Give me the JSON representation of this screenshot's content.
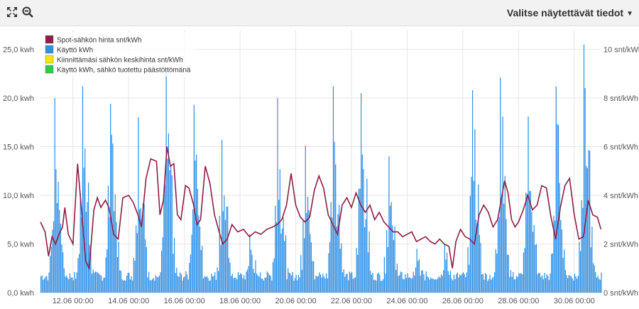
{
  "toolbar": {
    "fullscreen_icon": "expand-icon",
    "zoom_icon": "zoom-out-icon",
    "select_label": "Valitse näytettävät tiedot"
  },
  "colors": {
    "consumption": "#2f8fe3",
    "spot": "#8e1e45",
    "avg_price": "#f5e612",
    "green": "#2ecc40",
    "grid": "#e6e6e6",
    "axis_text": "#555555"
  },
  "chart_data": {
    "type": "bar+line",
    "title": "",
    "xlabel": "",
    "ylabel_left": "",
    "ylabel_right": "",
    "legend_position": "top-left",
    "grid": true,
    "left_axis": {
      "min": 0,
      "max": 27,
      "ticks": [
        0,
        5,
        10,
        15,
        20,
        25
      ],
      "tick_labels": [
        "0,0 kwh",
        "5,0 kwh",
        "10,0 kwh",
        "15,0 kwh",
        "20,0 kwh",
        "25,0 kwh"
      ]
    },
    "right_axis": {
      "min": 0,
      "max": 10.8,
      "ticks": [
        0,
        2,
        4,
        6,
        8,
        10
      ],
      "tick_labels": [
        "0 snt/kWh",
        "2 snt/kWh",
        "4 snt/kWh",
        "6 snt/kWh",
        "8 snt/kWh",
        "10 snt/kWh"
      ]
    },
    "x_axis": {
      "start": "10.06 20:00",
      "end": "01.07 00:00",
      "ticks": [
        "2023-06-12",
        "2023-06-14",
        "2023-06-16",
        "2023-06-18",
        "2023-06-20",
        "2023-06-22",
        "2023-06-24",
        "2023-06-26",
        "2023-06-28",
        "2023-06-30"
      ],
      "tick_labels": [
        "12.06 00:00",
        "14.06 00:00",
        "16.06 00:00",
        "18.06 00:00",
        "20.06 00:00",
        "22.06 00:00",
        "24.06 00:00",
        "26.06 00:00",
        "28.06 00:00",
        "30.06 00:00"
      ]
    },
    "legend": [
      {
        "label": "Spot-sähkön hinta snt/kWh",
        "color": "#8e1e45"
      },
      {
        "label": "Käyttö kWh",
        "color": "#2f8fe3"
      },
      {
        "label": "Kiinnittämäsi sähkön keskihinta snt/kWh",
        "color": "#f5e612"
      },
      {
        "label": "Käyttö kWh, sähkö tuotettu päästöttömänä",
        "color": "#2ecc40"
      }
    ],
    "series": [
      {
        "name": "Käyttö kWh",
        "axis": "left",
        "type": "bar",
        "daily_peaks_kwh": [
          {
            "date": "2023-06-11",
            "peak": 20.0
          },
          {
            "date": "2023-06-12",
            "peak": 21.2
          },
          {
            "date": "2023-06-13",
            "peak": 19.4
          },
          {
            "date": "2023-06-14",
            "peak": 18.0
          },
          {
            "date": "2023-06-15",
            "peak": 22.7
          },
          {
            "date": "2023-06-16",
            "peak": 19.3
          },
          {
            "date": "2023-06-17",
            "peak": 15.7
          },
          {
            "date": "2023-06-18",
            "peak": 6.0
          },
          {
            "date": "2023-06-19",
            "peak": 20.0
          },
          {
            "date": "2023-06-20",
            "peak": 15.1
          },
          {
            "date": "2023-06-21",
            "peak": 21.2
          },
          {
            "date": "2023-06-22",
            "peak": 20.5
          },
          {
            "date": "2023-06-23",
            "peak": 14.0
          },
          {
            "date": "2023-06-24",
            "peak": 4.5
          },
          {
            "date": "2023-06-25",
            "peak": 5.0
          },
          {
            "date": "2023-06-26",
            "peak": 20.8
          },
          {
            "date": "2023-06-27",
            "peak": 22.1
          },
          {
            "date": "2023-06-28",
            "peak": 18.1
          },
          {
            "date": "2023-06-29",
            "peak": 21.2
          },
          {
            "date": "2023-06-30",
            "peak": 25.5
          }
        ],
        "baseline_kwh": 1.2
      },
      {
        "name": "Spot-sähkön hinta snt/kWh",
        "axis": "right",
        "type": "line",
        "points": [
          [
            "2023-06-10 20:00",
            2.9
          ],
          [
            "2023-06-11 00:00",
            2.5
          ],
          [
            "2023-06-11 03:00",
            1.5
          ],
          [
            "2023-06-11 06:00",
            2.3
          ],
          [
            "2023-06-11 09:00",
            2.0
          ],
          [
            "2023-06-11 12:00",
            2.4
          ],
          [
            "2023-06-11 15:00",
            2.7
          ],
          [
            "2023-06-11 17:00",
            3.5
          ],
          [
            "2023-06-11 20:00",
            2.4
          ],
          [
            "2023-06-12 00:00",
            2.0
          ],
          [
            "2023-06-12 04:00",
            5.3
          ],
          [
            "2023-06-12 07:00",
            3.6
          ],
          [
            "2023-06-12 11:00",
            1.3
          ],
          [
            "2023-06-12 14:00",
            1.0
          ],
          [
            "2023-06-12 18:00",
            3.4
          ],
          [
            "2023-06-12 21:00",
            3.9
          ],
          [
            "2023-06-13 00:00",
            3.5
          ],
          [
            "2023-06-13 04:00",
            3.8
          ],
          [
            "2023-06-13 07:00",
            3.5
          ],
          [
            "2023-06-13 11:00",
            2.4
          ],
          [
            "2023-06-13 15:00",
            2.2
          ],
          [
            "2023-06-13 19:00",
            3.9
          ],
          [
            "2023-06-14 00:00",
            4.0
          ],
          [
            "2023-06-14 04:00",
            3.7
          ],
          [
            "2023-06-14 08:00",
            3.2
          ],
          [
            "2023-06-14 11:00",
            2.7
          ],
          [
            "2023-06-14 15:00",
            4.7
          ],
          [
            "2023-06-14 19:00",
            5.5
          ],
          [
            "2023-06-15 00:00",
            5.4
          ],
          [
            "2023-06-15 03:00",
            3.2
          ],
          [
            "2023-06-15 06:00",
            3.8
          ],
          [
            "2023-06-15 09:00",
            6.0
          ],
          [
            "2023-06-15 12:00",
            5.2
          ],
          [
            "2023-06-15 15:00",
            5.3
          ],
          [
            "2023-06-15 18:00",
            3.2
          ],
          [
            "2023-06-15 21:00",
            3.0
          ],
          [
            "2023-06-16 01:00",
            4.4
          ],
          [
            "2023-06-16 04:00",
            4.3
          ],
          [
            "2023-06-16 08:00",
            3.6
          ],
          [
            "2023-06-16 11:00",
            2.8
          ],
          [
            "2023-06-16 14:00",
            3.0
          ],
          [
            "2023-06-16 18:00",
            5.2
          ],
          [
            "2023-06-16 22:00",
            4.5
          ],
          [
            "2023-06-17 02:00",
            3.2
          ],
          [
            "2023-06-17 06:00",
            2.5
          ],
          [
            "2023-06-17 09:00",
            2.0
          ],
          [
            "2023-06-17 13:00",
            2.2
          ],
          [
            "2023-06-17 17:00",
            2.8
          ],
          [
            "2023-06-17 22:00",
            2.5
          ],
          [
            "2023-06-18 03:00",
            2.6
          ],
          [
            "2023-06-18 08:00",
            2.3
          ],
          [
            "2023-06-18 13:00",
            2.5
          ],
          [
            "2023-06-18 18:00",
            2.4
          ],
          [
            "2023-06-18 23:00",
            2.6
          ],
          [
            "2023-06-19 04:00",
            2.7
          ],
          [
            "2023-06-19 08:00",
            2.8
          ],
          [
            "2023-06-19 12:00",
            3.0
          ],
          [
            "2023-06-19 16:00",
            3.6
          ],
          [
            "2023-06-19 20:00",
            4.9
          ],
          [
            "2023-06-20 00:00",
            3.6
          ],
          [
            "2023-06-20 04:00",
            3.1
          ],
          [
            "2023-06-20 08:00",
            2.9
          ],
          [
            "2023-06-20 12:00",
            3.1
          ],
          [
            "2023-06-20 16:00",
            4.2
          ],
          [
            "2023-06-20 20:00",
            4.8
          ],
          [
            "2023-06-21 00:00",
            4.3
          ],
          [
            "2023-06-21 04:00",
            3.2
          ],
          [
            "2023-06-21 08:00",
            2.8
          ],
          [
            "2023-06-21 12:00",
            2.4
          ],
          [
            "2023-06-21 16:00",
            3.6
          ],
          [
            "2023-06-21 20:00",
            3.9
          ],
          [
            "2023-06-22 00:00",
            3.5
          ],
          [
            "2023-06-22 04:00",
            4.1
          ],
          [
            "2023-06-22 08:00",
            3.6
          ],
          [
            "2023-06-22 12:00",
            3.3
          ],
          [
            "2023-06-22 16:00",
            3.6
          ],
          [
            "2023-06-22 20:00",
            3.0
          ],
          [
            "2023-06-23 00:00",
            3.3
          ],
          [
            "2023-06-23 04:00",
            2.9
          ],
          [
            "2023-06-23 08:00",
            2.7
          ],
          [
            "2023-06-23 12:00",
            2.5
          ],
          [
            "2023-06-23 16:00",
            2.5
          ],
          [
            "2023-06-23 20:00",
            2.3
          ],
          [
            "2023-06-24 00:00",
            2.4
          ],
          [
            "2023-06-24 04:00",
            2.5
          ],
          [
            "2023-06-24 08:00",
            2.1
          ],
          [
            "2023-06-24 12:00",
            2.2
          ],
          [
            "2023-06-24 16:00",
            2.3
          ],
          [
            "2023-06-24 20:00",
            2.1
          ],
          [
            "2023-06-25 00:00",
            2.0
          ],
          [
            "2023-06-25 04:00",
            2.2
          ],
          [
            "2023-06-25 08:00",
            2.0
          ],
          [
            "2023-06-25 12:00",
            1.9
          ],
          [
            "2023-06-25 15:00",
            1.0
          ],
          [
            "2023-06-25 18:00",
            2.1
          ],
          [
            "2023-06-25 22:00",
            2.6
          ],
          [
            "2023-06-26 02:00",
            2.3
          ],
          [
            "2023-06-26 06:00",
            2.2
          ],
          [
            "2023-06-26 10:00",
            2.0
          ],
          [
            "2023-06-26 14:00",
            3.2
          ],
          [
            "2023-06-26 18:00",
            3.6
          ],
          [
            "2023-06-26 22:00",
            3.3
          ],
          [
            "2023-06-27 02:00",
            2.7
          ],
          [
            "2023-06-27 06:00",
            3.0
          ],
          [
            "2023-06-27 09:00",
            3.8
          ],
          [
            "2023-06-27 12:00",
            4.6
          ],
          [
            "2023-06-27 15:00",
            4.1
          ],
          [
            "2023-06-27 18:00",
            3.0
          ],
          [
            "2023-06-27 21:00",
            2.7
          ],
          [
            "2023-06-28 00:00",
            2.9
          ],
          [
            "2023-06-28 04:00",
            3.4
          ],
          [
            "2023-06-28 08:00",
            4.0
          ],
          [
            "2023-06-28 12:00",
            3.4
          ],
          [
            "2023-06-28 16:00",
            3.6
          ],
          [
            "2023-06-28 20:00",
            4.4
          ],
          [
            "2023-06-29 00:00",
            4.3
          ],
          [
            "2023-06-29 04:00",
            3.1
          ],
          [
            "2023-06-29 08:00",
            2.2
          ],
          [
            "2023-06-29 12:00",
            3.5
          ],
          [
            "2023-06-29 16:00",
            4.4
          ],
          [
            "2023-06-29 20:00",
            4.7
          ],
          [
            "2023-06-30 00:00",
            3.2
          ],
          [
            "2023-06-30 04:00",
            2.2
          ],
          [
            "2023-06-30 08:00",
            2.3
          ],
          [
            "2023-06-30 12:00",
            3.8
          ],
          [
            "2023-06-30 16:00",
            3.2
          ],
          [
            "2023-06-30 20:00",
            3.1
          ],
          [
            "2023-06-30 23:00",
            2.6
          ]
        ]
      }
    ]
  }
}
